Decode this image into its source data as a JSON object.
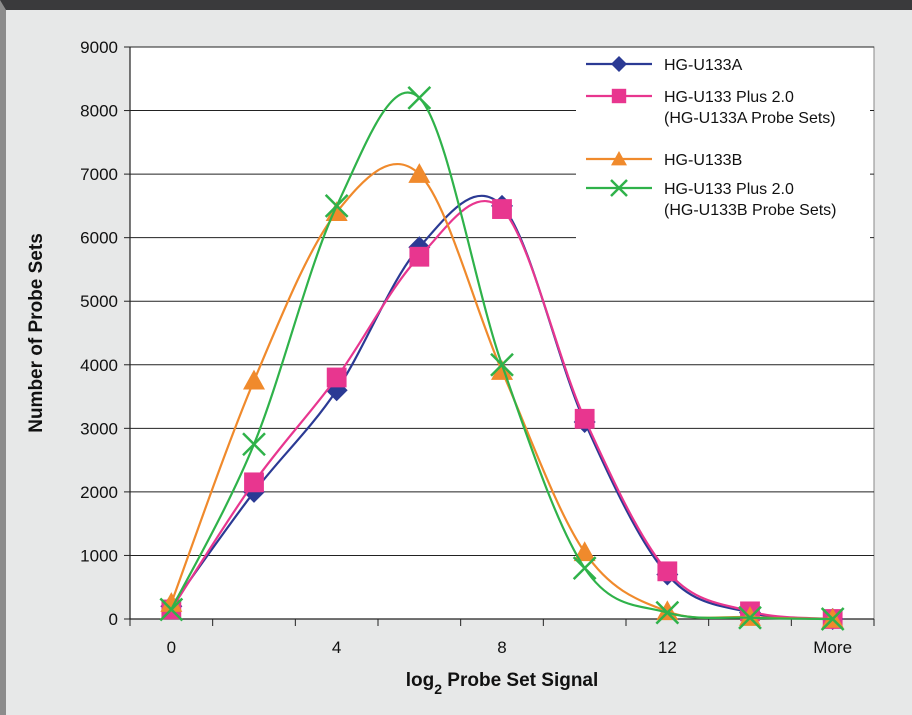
{
  "chart_data": {
    "type": "line",
    "xlabel_main": "log",
    "xlabel_sub": "2",
    "xlabel_rest": " Probe Set Signal",
    "ylabel": "Number of Probe Sets",
    "x_tick_labels": [
      {
        "at": 0,
        "label": "0"
      },
      {
        "at": 2,
        "label": "4"
      },
      {
        "at": 4,
        "label": "8"
      },
      {
        "at": 6,
        "label": "12"
      },
      {
        "at": 8,
        "label": "More"
      }
    ],
    "ylim": [
      0,
      9000
    ],
    "y_ticks": [
      0,
      1000,
      2000,
      3000,
      4000,
      5000,
      6000,
      7000,
      8000,
      9000
    ],
    "grid": "horizontal",
    "legend_position": "top-right",
    "series": [
      {
        "name": "HG-U133A",
        "sub": "",
        "marker": "diamond",
        "color": "#2b3a94",
        "values": [
          200,
          2000,
          3600,
          5850,
          6500,
          3100,
          700,
          100,
          0
        ]
      },
      {
        "name": "HG-U133 Plus 2.0",
        "sub": "(HG-U133A Probe Sets)",
        "marker": "square",
        "color": "#e8368f",
        "values": [
          150,
          2150,
          3800,
          5700,
          6450,
          3150,
          750,
          120,
          0
        ]
      },
      {
        "name": "HG-U133B",
        "sub": "",
        "marker": "triangle",
        "color": "#f08a2c",
        "values": [
          250,
          3750,
          6400,
          7000,
          3900,
          1050,
          120,
          30,
          0
        ]
      },
      {
        "name": "HG-U133 Plus 2.0",
        "sub": "(HG-U133B Probe Sets)",
        "marker": "x",
        "color": "#2fb24a",
        "values": [
          150,
          2750,
          6500,
          8200,
          4000,
          800,
          100,
          20,
          0
        ]
      }
    ]
  }
}
